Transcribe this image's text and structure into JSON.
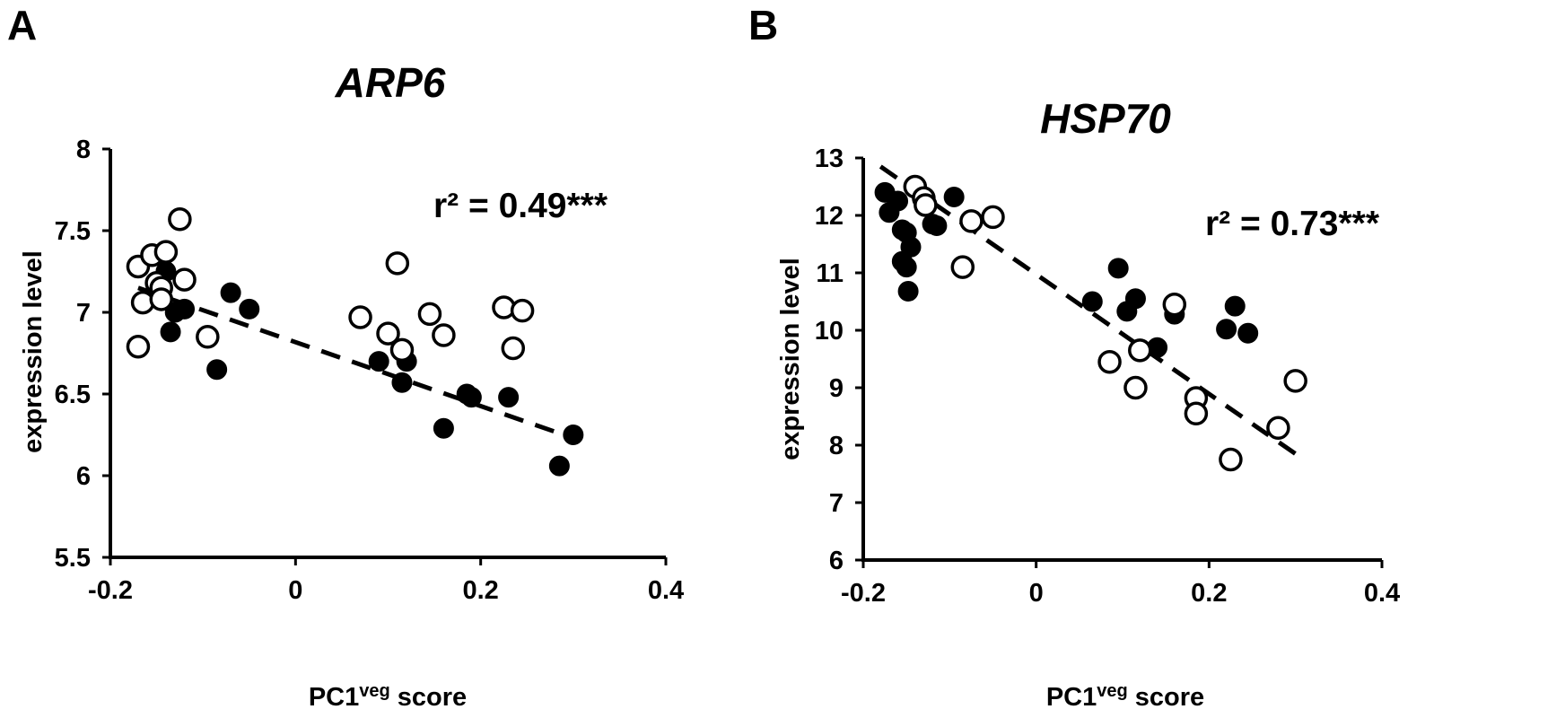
{
  "chart_data": [
    {
      "type": "scatter",
      "panel": "A",
      "title": "ARP6",
      "xlabel_main": "PC1",
      "xlabel_sup": "veg",
      "xlabel_tail": " score",
      "ylabel": "expression level",
      "xlim": [
        -0.2,
        0.4
      ],
      "ylim": [
        5.5,
        8
      ],
      "xticks": [
        "-0.2",
        "0",
        "0.2",
        "0.4"
      ],
      "xtick_values": [
        -0.2,
        0,
        0.2,
        0.4
      ],
      "yticks": [
        "5.5",
        "6",
        "6.5",
        "7",
        "7.5",
        "8"
      ],
      "ytick_values": [
        5.5,
        6,
        6.5,
        7,
        7.5,
        8
      ],
      "stat": "r² = 0.49***",
      "trendline": {
        "x": [
          -0.17,
          0.29
        ],
        "y": [
          7.15,
          6.25
        ],
        "style": "dashed"
      },
      "series": [
        {
          "style": "filled",
          "points": [
            [
              -0.14,
              7.25
            ],
            [
              -0.13,
              7.0
            ],
            [
              -0.12,
              7.02
            ],
            [
              -0.135,
              6.88
            ],
            [
              -0.085,
              6.65
            ],
            [
              -0.07,
              7.12
            ],
            [
              -0.05,
              7.02
            ],
            [
              0.09,
              6.7
            ],
            [
              0.12,
              6.7
            ],
            [
              0.115,
              6.57
            ],
            [
              0.185,
              6.5
            ],
            [
              0.19,
              6.48
            ],
            [
              0.23,
              6.48
            ],
            [
              0.16,
              6.29
            ],
            [
              0.3,
              6.25
            ],
            [
              0.285,
              6.06
            ]
          ]
        },
        {
          "style": "open",
          "points": [
            [
              -0.17,
              7.28
            ],
            [
              -0.165,
              7.06
            ],
            [
              -0.155,
              7.35
            ],
            [
              -0.15,
              7.18
            ],
            [
              -0.145,
              7.15
            ],
            [
              -0.145,
              7.08
            ],
            [
              -0.14,
              7.37
            ],
            [
              -0.12,
              7.2
            ],
            [
              -0.125,
              7.57
            ],
            [
              -0.17,
              6.79
            ],
            [
              -0.095,
              6.85
            ],
            [
              0.07,
              6.97
            ],
            [
              0.1,
              6.87
            ],
            [
              0.11,
              7.3
            ],
            [
              0.115,
              6.77
            ],
            [
              0.145,
              6.99
            ],
            [
              0.16,
              6.86
            ],
            [
              0.225,
              7.03
            ],
            [
              0.235,
              6.78
            ],
            [
              0.245,
              7.01
            ]
          ]
        }
      ]
    },
    {
      "type": "scatter",
      "panel": "B",
      "title": "HSP70",
      "xlabel_main": "PC1",
      "xlabel_sup": "veg",
      "xlabel_tail": " score",
      "ylabel": "expression level",
      "xlim": [
        -0.2,
        0.4
      ],
      "ylim": [
        6,
        13
      ],
      "xticks": [
        "-0.2",
        "0",
        "0.2",
        "0.4"
      ],
      "xtick_values": [
        -0.2,
        0,
        0.2,
        0.4
      ],
      "yticks": [
        "6",
        "7",
        "8",
        "9",
        "10",
        "11",
        "12",
        "13"
      ],
      "ytick_values": [
        6,
        7,
        8,
        9,
        10,
        11,
        12,
        13
      ],
      "stat": "r² = 0.73***",
      "trendline": {
        "x": [
          -0.18,
          0.3
        ],
        "y": [
          12.85,
          7.85
        ],
        "style": "dashed"
      },
      "series": [
        {
          "style": "filled",
          "points": [
            [
              -0.175,
              12.4
            ],
            [
              -0.17,
              12.05
            ],
            [
              -0.16,
              12.25
            ],
            [
              -0.155,
              11.75
            ],
            [
              -0.15,
              11.7
            ],
            [
              -0.155,
              11.2
            ],
            [
              -0.145,
              11.45
            ],
            [
              -0.15,
              11.1
            ],
            [
              -0.148,
              10.68
            ],
            [
              -0.12,
              11.85
            ],
            [
              -0.115,
              11.82
            ],
            [
              -0.095,
              12.32
            ],
            [
              0.065,
              10.5
            ],
            [
              0.095,
              11.08
            ],
            [
              0.105,
              10.33
            ],
            [
              0.115,
              10.55
            ],
            [
              0.14,
              9.7
            ],
            [
              0.16,
              10.28
            ],
            [
              0.22,
              10.02
            ],
            [
              0.23,
              10.42
            ],
            [
              0.245,
              9.95
            ]
          ]
        },
        {
          "style": "open",
          "points": [
            [
              -0.14,
              12.5
            ],
            [
              -0.13,
              12.3
            ],
            [
              -0.128,
              12.18
            ],
            [
              -0.085,
              11.1
            ],
            [
              -0.075,
              11.9
            ],
            [
              -0.05,
              11.97
            ],
            [
              0.085,
              9.45
            ],
            [
              0.115,
              9.0
            ],
            [
              0.12,
              9.65
            ],
            [
              0.16,
              10.45
            ],
            [
              0.185,
              8.82
            ],
            [
              0.185,
              8.55
            ],
            [
              0.225,
              7.75
            ],
            [
              0.28,
              8.3
            ],
            [
              0.3,
              9.12
            ]
          ]
        }
      ]
    }
  ]
}
